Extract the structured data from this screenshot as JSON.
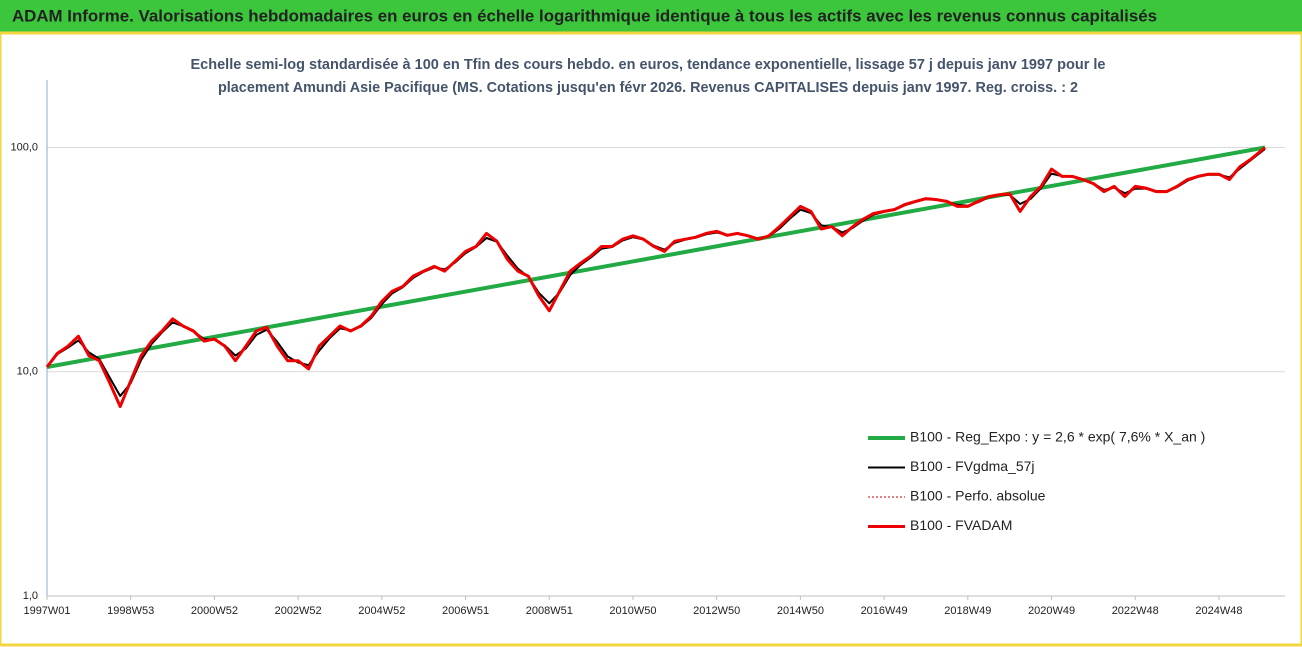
{
  "chart_data": {
    "type": "line",
    "title": "ADAM Informe. Valorisations hebdomadaires en euros en échelle logarithmique identique à tous les actifs avec les revenus connus capitalisés",
    "subtitle": [
      "Echelle semi-log standardisée à 100 en Tfin des cours hebdo. en euros, tendance exponentielle, lissage 57 j depuis janv 1997 pour le",
      "placement Amundi Asie Pacifique (MS. Cotations jusqu'en févr 2026. Revenus CAPITALISES depuis janv 1997. Reg. croiss. : 2"
    ],
    "log_scale": true,
    "grid": true,
    "legend": "right",
    "xlim": [
      1997,
      2026.1
    ],
    "xticks": [
      {
        "value": 1997.0,
        "label": "1997W01"
      },
      {
        "value": 1999.0,
        "label": "1998W53"
      },
      {
        "value": 2001.0,
        "label": "2000W52"
      },
      {
        "value": 2003.0,
        "label": "2002W52"
      },
      {
        "value": 2005.0,
        "label": "2004W52"
      },
      {
        "value": 2007.0,
        "label": "2006W51"
      },
      {
        "value": 2009.0,
        "label": "2008W51"
      },
      {
        "value": 2011.0,
        "label": "2010W50"
      },
      {
        "value": 2013.0,
        "label": "2012W50"
      },
      {
        "value": 2015.0,
        "label": "2014W50"
      },
      {
        "value": 2017.0,
        "label": "2016W49"
      },
      {
        "value": 2019.0,
        "label": "2018W49"
      },
      {
        "value": 2021.0,
        "label": "2020W49"
      },
      {
        "value": 2023.0,
        "label": "2022W48"
      },
      {
        "value": 2025.0,
        "label": "2024W48"
      }
    ],
    "ylim": [
      1,
      200
    ],
    "yticks": [
      {
        "value": 1,
        "label": "1,0"
      },
      {
        "value": 10,
        "label": "10,0"
      },
      {
        "value": 100,
        "label": "100,0"
      }
    ],
    "x": [
      1997.0,
      1997.25,
      1997.5,
      1997.75,
      1998.0,
      1998.25,
      1998.5,
      1998.75,
      1999.0,
      1999.25,
      1999.5,
      1999.75,
      2000.0,
      2000.25,
      2000.5,
      2000.75,
      2001.0,
      2001.25,
      2001.5,
      2001.75,
      2002.0,
      2002.25,
      2002.5,
      2002.75,
      2003.0,
      2003.25,
      2003.5,
      2003.75,
      2004.0,
      2004.25,
      2004.5,
      2004.75,
      2005.0,
      2005.25,
      2005.5,
      2005.75,
      2006.0,
      2006.25,
      2006.5,
      2006.75,
      2007.0,
      2007.25,
      2007.5,
      2007.75,
      2008.0,
      2008.25,
      2008.5,
      2008.75,
      2009.0,
      2009.25,
      2009.5,
      2009.75,
      2010.0,
      2010.25,
      2010.5,
      2010.75,
      2011.0,
      2011.25,
      2011.5,
      2011.75,
      2012.0,
      2012.25,
      2012.5,
      2012.75,
      2013.0,
      2013.25,
      2013.5,
      2013.75,
      2014.0,
      2014.25,
      2014.5,
      2014.75,
      2015.0,
      2015.25,
      2015.5,
      2015.75,
      2016.0,
      2016.25,
      2016.5,
      2016.75,
      2017.0,
      2017.25,
      2017.5,
      2017.75,
      2018.0,
      2018.25,
      2018.5,
      2018.75,
      2019.0,
      2019.25,
      2019.5,
      2019.75,
      2020.0,
      2020.25,
      2020.5,
      2020.75,
      2021.0,
      2021.25,
      2021.5,
      2021.75,
      2022.0,
      2022.25,
      2022.5,
      2022.75,
      2023.0,
      2023.25,
      2023.5,
      2023.75,
      2024.0,
      2024.25,
      2024.5,
      2024.75,
      2025.0,
      2025.25,
      2025.5,
      2025.75,
      2026.1
    ],
    "series": [
      {
        "name": "B100 - Reg_Expo : y = 2,6 * exp( 7,6% *  X_an )",
        "color": "#22aa44",
        "width": 4,
        "x": [
          1997.0,
          2026.1
        ],
        "values": [
          10.5,
          100
        ]
      },
      {
        "name": "B100 - FVgdma_57j",
        "color": "#000000",
        "width": 2,
        "values": [
          10.5,
          12.0,
          12.8,
          13.8,
          12.2,
          11.4,
          9.4,
          7.8,
          8.9,
          11.3,
          13.3,
          15.0,
          16.6,
          16.0,
          15.1,
          14.0,
          13.9,
          13.1,
          11.8,
          12.7,
          14.6,
          15.4,
          13.6,
          11.7,
          11.0,
          10.7,
          12.4,
          14.1,
          15.6,
          15.3,
          15.9,
          17.4,
          20.0,
          22.4,
          23.8,
          26.2,
          27.9,
          29.2,
          28.6,
          30.7,
          33.8,
          36.0,
          39.5,
          38.0,
          32.9,
          28.8,
          26.5,
          22.5,
          20.2,
          22.6,
          27.0,
          30.0,
          32.4,
          35.4,
          36.0,
          38.5,
          39.8,
          38.9,
          36.5,
          35.0,
          37.6,
          38.8,
          39.6,
          41.0,
          41.8,
          40.8,
          41.2,
          40.3,
          39.3,
          40.2,
          43.5,
          48.2,
          52.8,
          51.0,
          45.0,
          44.2,
          41.8,
          43.8,
          47.2,
          50.2,
          51.6,
          52.7,
          55.3,
          57.2,
          58.8,
          58.6,
          57.5,
          55.5,
          55.0,
          57.0,
          60.0,
          61.3,
          61.5,
          56.0,
          59.0,
          66.0,
          76.5,
          74.5,
          74.0,
          72.0,
          69.2,
          64.8,
          66.2,
          62.5,
          65.5,
          65.6,
          64.0,
          63.8,
          66.5,
          71.2,
          74.0,
          75.6,
          75.7,
          73.5,
          80.5,
          87.5,
          98.5
        ]
      },
      {
        "name": "B100 - Perfo. absolue",
        "color": "#c00000",
        "width": 1,
        "dash": "2 2",
        "values": [
          10.5,
          12.1,
          13.0,
          14.4,
          11.8,
          11.2,
          8.9,
          7.0,
          9.1,
          11.8,
          13.7,
          15.2,
          17.2,
          16.0,
          15.2,
          13.7,
          14.0,
          13.0,
          11.2,
          13.0,
          15.2,
          15.8,
          13.0,
          11.2,
          11.2,
          10.3,
          13.0,
          14.4,
          16.0,
          15.2,
          16.0,
          17.7,
          20.6,
          22.9,
          24.0,
          26.7,
          28.1,
          29.5,
          28.1,
          31.1,
          34.4,
          36.2,
          41.4,
          38.2,
          31.7,
          28.1,
          26.7,
          21.8,
          18.7,
          22.9,
          28.1,
          30.5,
          32.9,
          36.2,
          36.2,
          39.0,
          40.4,
          39.0,
          36.2,
          34.4,
          38.2,
          39.0,
          39.8,
          41.4,
          42.3,
          40.6,
          41.4,
          40.4,
          39.0,
          40.4,
          44.4,
          49.2,
          54.6,
          51.9,
          43.3,
          44.4,
          40.4,
          44.4,
          47.9,
          50.8,
          51.9,
          52.9,
          55.7,
          57.5,
          59.2,
          58.6,
          57.5,
          54.6,
          54.6,
          57.5,
          60.4,
          61.6,
          62.2,
          51.9,
          60.4,
          67.1,
          80.1,
          74.3,
          74.3,
          72.0,
          69.0,
          63.6,
          67.1,
          60.4,
          67.1,
          65.9,
          63.6,
          63.6,
          67.1,
          72.0,
          74.3,
          76.0,
          76.0,
          72.0,
          82.1,
          88.4,
          100
        ]
      },
      {
        "name": "B100 - FVADAM",
        "color": "#ee0000",
        "width": 3,
        "values": [
          10.5,
          12.1,
          13.0,
          14.4,
          11.8,
          11.2,
          8.9,
          7.0,
          9.1,
          11.8,
          13.7,
          15.2,
          17.2,
          16.0,
          15.2,
          13.7,
          14.0,
          13.0,
          11.2,
          13.0,
          15.2,
          15.8,
          13.0,
          11.2,
          11.2,
          10.3,
          13.0,
          14.4,
          16.0,
          15.2,
          16.0,
          17.7,
          20.6,
          22.9,
          24.0,
          26.7,
          28.1,
          29.5,
          28.1,
          31.1,
          34.4,
          36.2,
          41.4,
          38.2,
          31.7,
          28.1,
          26.7,
          21.8,
          18.7,
          22.9,
          28.1,
          30.5,
          32.9,
          36.2,
          36.2,
          39.0,
          40.4,
          39.0,
          36.2,
          34.4,
          38.2,
          39.0,
          39.8,
          41.4,
          42.3,
          40.6,
          41.4,
          40.4,
          39.0,
          40.4,
          44.4,
          49.2,
          54.6,
          51.9,
          43.3,
          44.4,
          40.4,
          44.4,
          47.9,
          50.8,
          51.9,
          52.9,
          55.7,
          57.5,
          59.2,
          58.6,
          57.5,
          54.6,
          54.6,
          57.5,
          60.4,
          61.6,
          62.2,
          51.9,
          60.4,
          67.1,
          80.1,
          74.3,
          74.3,
          72.0,
          69.0,
          63.6,
          67.1,
          60.4,
          67.1,
          65.9,
          63.6,
          63.6,
          67.1,
          72.0,
          74.3,
          76.0,
          76.0,
          72.0,
          82.1,
          88.4,
          100
        ]
      }
    ]
  }
}
